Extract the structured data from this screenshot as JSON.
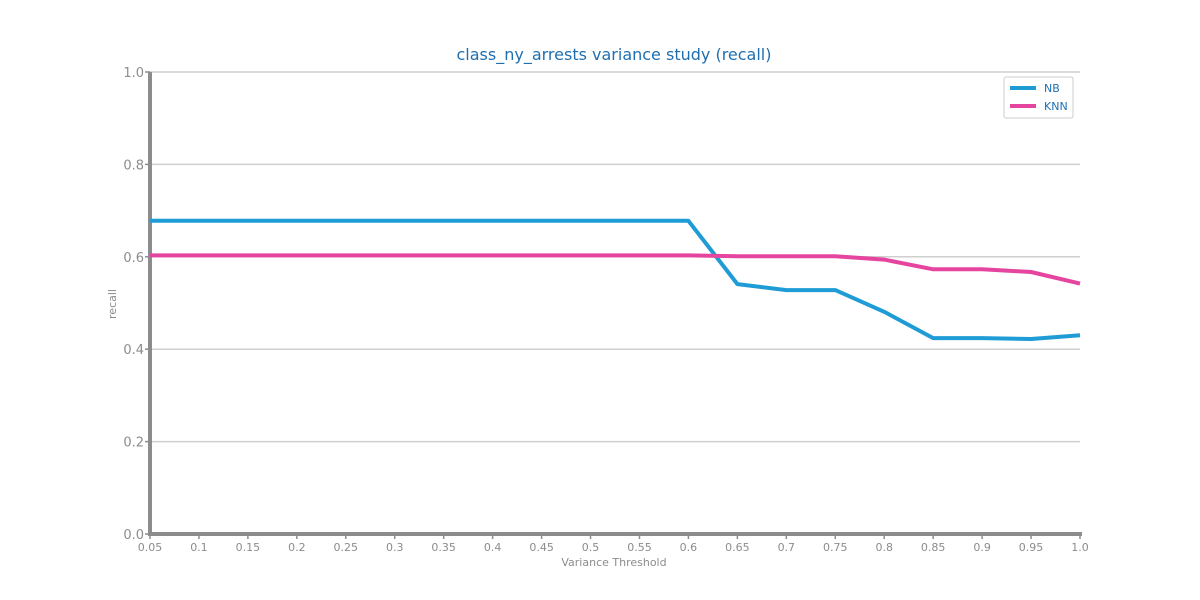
{
  "chart_data": {
    "type": "line",
    "title": "class_ny_arrests variance study (recall)",
    "xlabel": "Variance Threshold",
    "ylabel": "recall",
    "x": [
      0.05,
      0.1,
      0.15,
      0.2,
      0.25,
      0.3,
      0.35,
      0.4,
      0.45,
      0.5,
      0.55,
      0.6,
      0.65,
      0.7,
      0.75,
      0.8,
      0.85,
      0.9,
      0.95,
      1.0
    ],
    "x_tick_labels": [
      "0.05",
      "0.1",
      "0.15",
      "0.2",
      "0.25",
      "0.3",
      "0.35",
      "0.4",
      "0.45",
      "0.5",
      "0.55",
      "0.6",
      "0.65",
      "0.7",
      "0.75",
      "0.8",
      "0.85",
      "0.9",
      "0.95",
      "1.0"
    ],
    "xlim": [
      0.05,
      1.0
    ],
    "ylim": [
      0.0,
      1.0
    ],
    "y_ticks": [
      0.0,
      0.2,
      0.4,
      0.6,
      0.8,
      1.0
    ],
    "y_tick_labels": [
      "0.0",
      "0.2",
      "0.4",
      "0.6",
      "0.8",
      "1.0"
    ],
    "grid": "horizontal",
    "legend_position": "top-right",
    "series": [
      {
        "name": "NB",
        "color": "#1f9bd6",
        "values": [
          0.678,
          0.678,
          0.678,
          0.678,
          0.678,
          0.678,
          0.678,
          0.678,
          0.678,
          0.678,
          0.678,
          0.678,
          0.541,
          0.528,
          0.528,
          0.481,
          0.424,
          0.424,
          0.422,
          0.43
        ]
      },
      {
        "name": "KNN",
        "color": "#e5459e",
        "values": [
          0.603,
          0.603,
          0.603,
          0.603,
          0.603,
          0.603,
          0.603,
          0.603,
          0.603,
          0.603,
          0.603,
          0.603,
          0.601,
          0.601,
          0.601,
          0.594,
          0.573,
          0.573,
          0.567,
          0.542
        ]
      }
    ]
  }
}
